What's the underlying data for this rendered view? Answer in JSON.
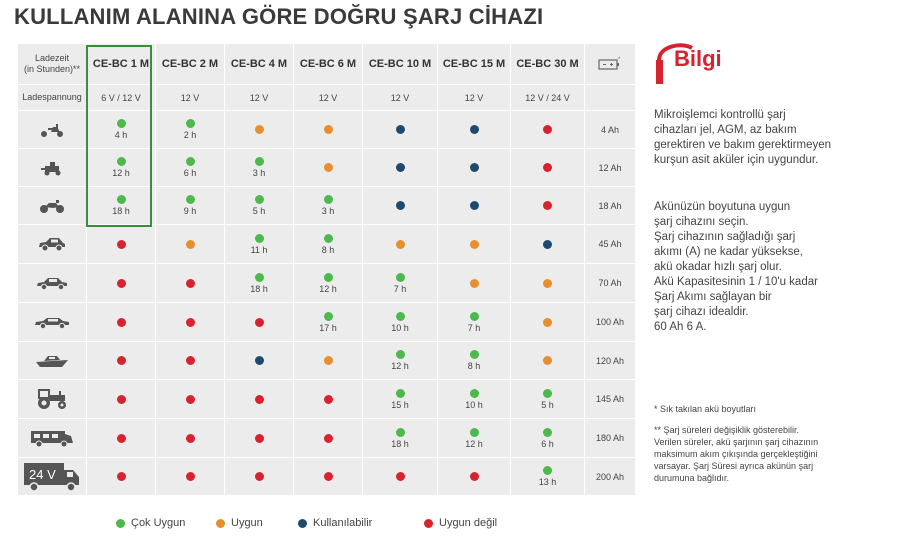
{
  "title": "KULLANIM ALANINA GÖRE DOĞRU ŞARJ CİHAZI",
  "table": {
    "header_label": [
      "Ladezeit",
      "(in Stunden)**"
    ],
    "voltage_label": "Ladespannung",
    "models": [
      "CE-BC 1 M",
      "CE-BC 2 M",
      "CE-BC 4 M",
      "CE-BC 6 M",
      "CE-BC 10 M",
      "CE-BC 15 M",
      "CE-BC 30 M"
    ],
    "voltages": [
      "6 V / 12 V",
      "12 V",
      "12 V",
      "12 V",
      "12 V",
      "12 V",
      "12 V / 24 V"
    ],
    "capacity_header_icon": "battery-charger-icon",
    "rows": [
      {
        "icon": "scooter-icon",
        "capacity": "4 Ah",
        "cells": [
          {
            "status": "green",
            "time": "4 h"
          },
          {
            "status": "green",
            "time": "2 h"
          },
          {
            "status": "orange",
            "time": ""
          },
          {
            "status": "orange",
            "time": ""
          },
          {
            "status": "blue",
            "time": ""
          },
          {
            "status": "blue",
            "time": ""
          },
          {
            "status": "red",
            "time": ""
          }
        ]
      },
      {
        "icon": "lawn-mower-icon",
        "capacity": "12 Ah",
        "cells": [
          {
            "status": "green",
            "time": "12 h"
          },
          {
            "status": "green",
            "time": "6 h"
          },
          {
            "status": "green",
            "time": "3 h"
          },
          {
            "status": "orange",
            "time": ""
          },
          {
            "status": "blue",
            "time": ""
          },
          {
            "status": "blue",
            "time": ""
          },
          {
            "status": "red",
            "time": ""
          }
        ]
      },
      {
        "icon": "motorcycle-icon",
        "capacity": "18 Ah",
        "cells": [
          {
            "status": "green",
            "time": "18 h"
          },
          {
            "status": "green",
            "time": "9 h"
          },
          {
            "status": "green",
            "time": "5 h"
          },
          {
            "status": "green",
            "time": "3 h"
          },
          {
            "status": "blue",
            "time": ""
          },
          {
            "status": "blue",
            "time": ""
          },
          {
            "status": "red",
            "time": ""
          }
        ]
      },
      {
        "icon": "small-car-icon",
        "capacity": "45 Ah",
        "cells": [
          {
            "status": "red",
            "time": ""
          },
          {
            "status": "orange",
            "time": ""
          },
          {
            "status": "green",
            "time": "11 h"
          },
          {
            "status": "green",
            "time": "8 h"
          },
          {
            "status": "orange",
            "time": ""
          },
          {
            "status": "orange",
            "time": ""
          },
          {
            "status": "blue",
            "time": ""
          }
        ]
      },
      {
        "icon": "sedan-car-icon",
        "capacity": "70 Ah",
        "cells": [
          {
            "status": "red",
            "time": ""
          },
          {
            "status": "red",
            "time": ""
          },
          {
            "status": "green",
            "time": "18 h"
          },
          {
            "status": "green",
            "time": "12 h"
          },
          {
            "status": "green",
            "time": "7 h"
          },
          {
            "status": "orange",
            "time": ""
          },
          {
            "status": "orange",
            "time": ""
          }
        ]
      },
      {
        "icon": "large-car-icon",
        "capacity": "100 Ah",
        "cells": [
          {
            "status": "red",
            "time": ""
          },
          {
            "status": "red",
            "time": ""
          },
          {
            "status": "red",
            "time": ""
          },
          {
            "status": "green",
            "time": "17 h"
          },
          {
            "status": "green",
            "time": "10 h"
          },
          {
            "status": "green",
            "time": "7 h"
          },
          {
            "status": "orange",
            "time": ""
          }
        ]
      },
      {
        "icon": "boat-icon",
        "capacity": "120 Ah",
        "cells": [
          {
            "status": "red",
            "time": ""
          },
          {
            "status": "red",
            "time": ""
          },
          {
            "status": "blue",
            "time": ""
          },
          {
            "status": "orange",
            "time": ""
          },
          {
            "status": "green",
            "time": "12 h"
          },
          {
            "status": "green",
            "time": "8 h"
          },
          {
            "status": "orange",
            "time": ""
          }
        ]
      },
      {
        "icon": "tractor-icon",
        "capacity": "145 Ah",
        "cells": [
          {
            "status": "red",
            "time": ""
          },
          {
            "status": "red",
            "time": ""
          },
          {
            "status": "red",
            "time": ""
          },
          {
            "status": "red",
            "time": ""
          },
          {
            "status": "green",
            "time": "15 h"
          },
          {
            "status": "green",
            "time": "10 h"
          },
          {
            "status": "green",
            "time": "5 h"
          }
        ]
      },
      {
        "icon": "motorhome-icon",
        "capacity": "180 Ah",
        "cells": [
          {
            "status": "red",
            "time": ""
          },
          {
            "status": "red",
            "time": ""
          },
          {
            "status": "red",
            "time": ""
          },
          {
            "status": "red",
            "time": ""
          },
          {
            "status": "green",
            "time": "18 h"
          },
          {
            "status": "green",
            "time": "12 h"
          },
          {
            "status": "green",
            "time": "6 h"
          }
        ]
      },
      {
        "icon": "truck-24v-icon",
        "icon_text": "24 V",
        "capacity": "200 Ah",
        "cells": [
          {
            "status": "red",
            "time": ""
          },
          {
            "status": "red",
            "time": ""
          },
          {
            "status": "red",
            "time": ""
          },
          {
            "status": "red",
            "time": ""
          },
          {
            "status": "red",
            "time": ""
          },
          {
            "status": "red",
            "time": ""
          },
          {
            "status": "green",
            "time": "13 h"
          }
        ]
      }
    ]
  },
  "legend": [
    {
      "status": "green",
      "label": "Çok Uygun"
    },
    {
      "status": "orange",
      "label": "Uygun"
    },
    {
      "status": "blue",
      "label": "Kullanılabilir"
    },
    {
      "status": "red",
      "label": "Uygun değil"
    }
  ],
  "colors": {
    "green": "#4db84b",
    "orange": "#e78f2e",
    "blue": "#1d4a6e",
    "red": "#d8232f",
    "highlight": "#3a8d3a",
    "logo_red": "#d8232f"
  },
  "sidebar": {
    "logo_text": "Bilgi",
    "logo_letter": "i",
    "paragraph1": [
      "Mikroişlemci kontrollü şarj",
      "cihazları jel, AGM, az bakım",
      "gerektiren ve bakım gerektirmeyen",
      "kurşun asit aküler için uygundur."
    ],
    "paragraph2": [
      "Akünüzün boyutuna uygun",
      "şarj cihazını seçin.",
      "Şarj cihazının sağladığı şarj",
      "akımı (A) ne kadar yüksekse,",
      "akü okadar hızlı şarj olur.",
      "Akü Kapasitesinin 1 / 10'u kadar",
      "Şarj Akımı sağlayan bir",
      "şarj cihazı idealdir.",
      "60 Ah 6 A."
    ],
    "note1": "* Sık takılan akü boyutları",
    "note2": [
      "** Şarj süreleri değişiklik gösterebilir.",
      "Verilen süreler, akü şarjının şarj cihazının",
      "maksimum akım çıkışında gerçekleştiğini",
      "varsayar. Şarj Süresi ayrıca akünün şarj",
      "durumuna bağlıdır."
    ]
  }
}
